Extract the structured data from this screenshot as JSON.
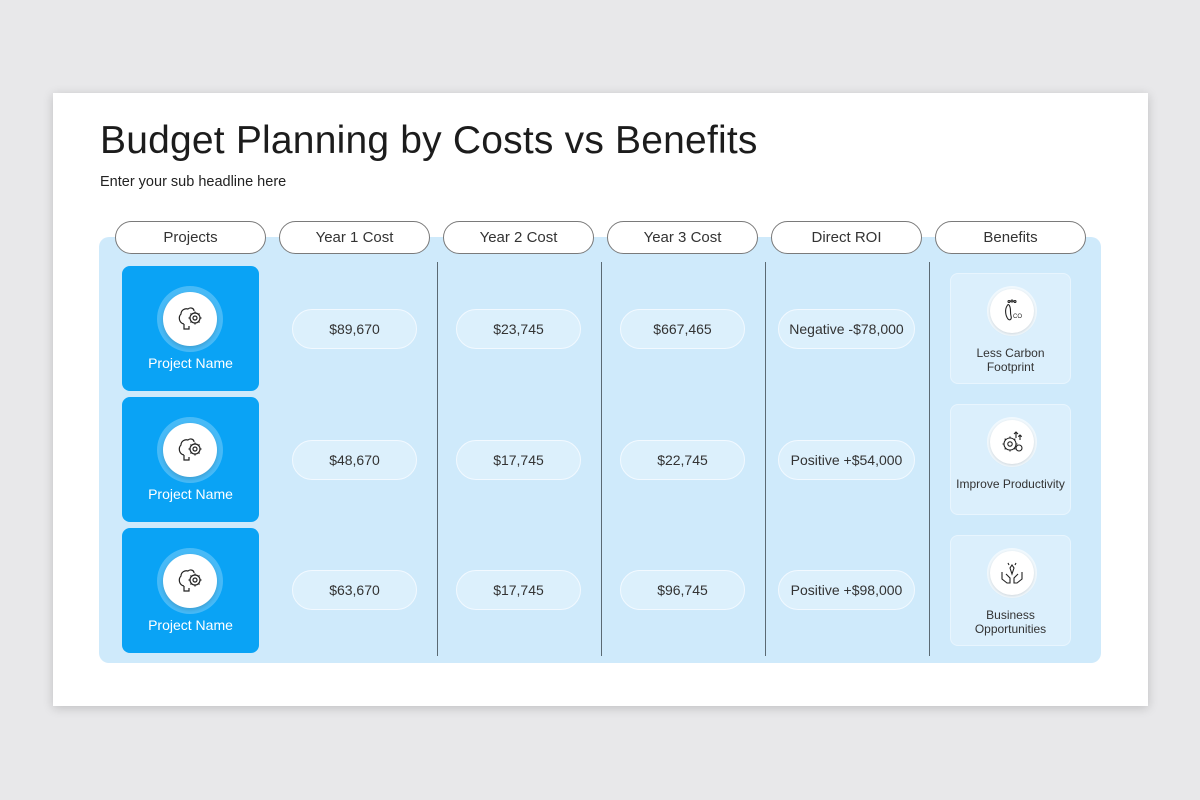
{
  "slide": {
    "title": "Budget Planning by Costs vs Benefits",
    "subtitle": "Enter your sub headline here"
  },
  "headers": [
    "Projects",
    "Year 1 Cost",
    "Year 2 Cost",
    "Year 3 Cost",
    "Direct ROI",
    "Benefits"
  ],
  "rows": [
    {
      "project": "Project Name",
      "project_icon": "brain-gear-icon",
      "year1": "$89,670",
      "year2": "$23,745",
      "year3": "$667,465",
      "roi": "Negative -$78,000",
      "benefit": "Less Carbon Footprint",
      "benefit_icon": "footprint-co2-icon"
    },
    {
      "project": "Project Name",
      "project_icon": "brain-gear-icon",
      "year1": "$48,670",
      "year2": "$17,745",
      "year3": "$22,745",
      "roi": "Positive +$54,000",
      "benefit": "Improve Productivity",
      "benefit_icon": "productivity-gear-icon"
    },
    {
      "project": "Project Name",
      "project_icon": "brain-gear-icon",
      "year1": "$63,670",
      "year2": "$17,745",
      "year3": "$96,745",
      "roi": "Positive +$98,000",
      "benefit": "Business Opportunities",
      "benefit_icon": "hands-opportunity-icon"
    }
  ],
  "colors": {
    "accent": "#0aa3f5",
    "panel": "#cfeafb",
    "background": "#e8e8ea"
  }
}
